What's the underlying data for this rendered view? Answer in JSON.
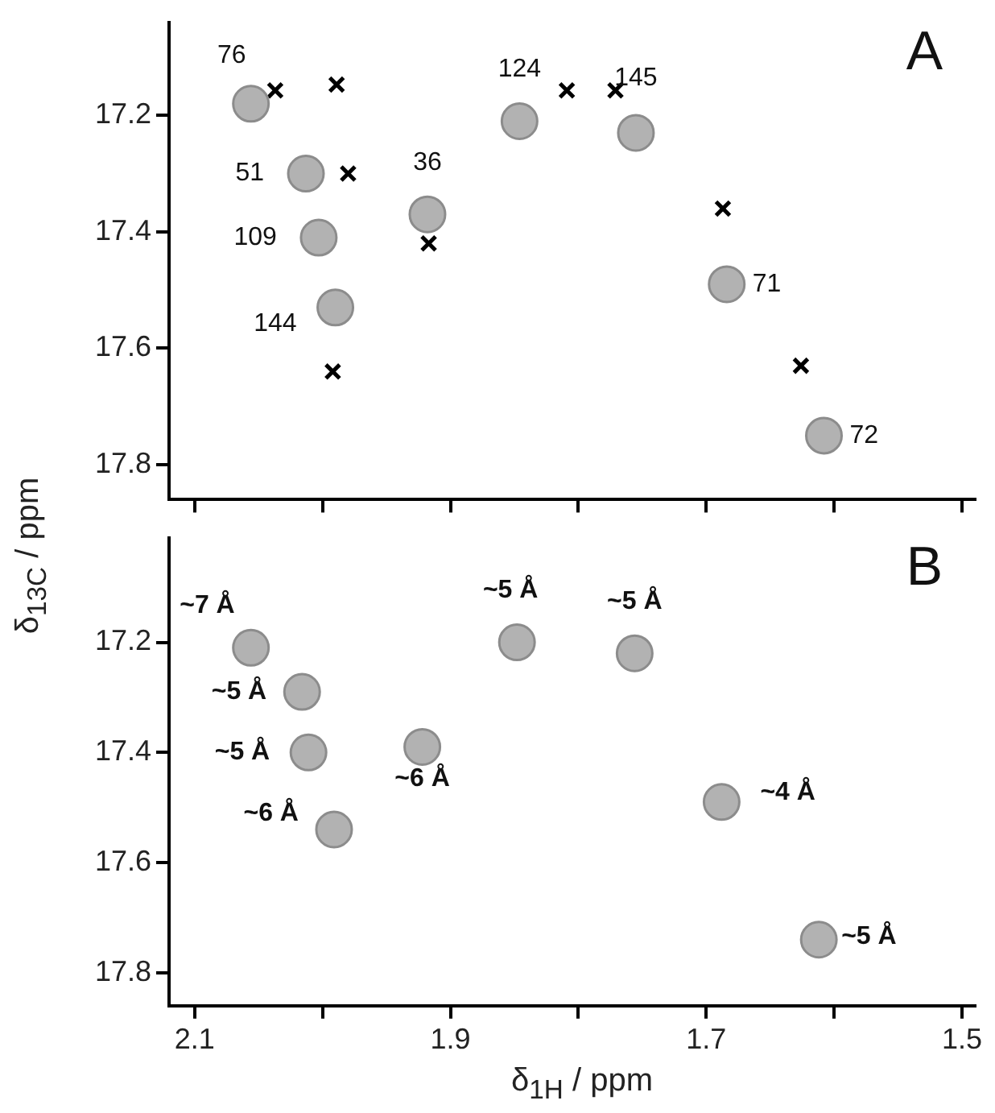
{
  "chart_data": [
    {
      "type": "scatter",
      "annotations": [
        "A",
        {
          "text": "76",
          "x": 2.056,
          "y": 17.18
        },
        {
          "text": "51",
          "x": 2.013,
          "y": 17.3
        },
        {
          "text": "109",
          "x": 2.003,
          "y": 17.41
        },
        {
          "text": "144",
          "x": 1.99,
          "y": 17.53
        },
        {
          "text": "36",
          "x": 1.918,
          "y": 17.37
        },
        {
          "text": "124",
          "x": 1.846,
          "y": 17.21
        },
        {
          "text": "145",
          "x": 1.755,
          "y": 17.23
        },
        {
          "text": "71",
          "x": 1.684,
          "y": 17.49
        },
        {
          "text": "72",
          "x": 1.608,
          "y": 17.75
        }
      ],
      "xlim": [
        2.12,
        1.49
      ],
      "xticks": [
        2.1,
        {
          "value": 2.0,
          "label": null
        },
        1.9,
        {
          "value": 1.8,
          "label": null
        },
        1.7,
        {
          "value": 1.6,
          "label": null
        },
        1.5
      ],
      "ylim": [
        17.86,
        17.04
      ],
      "yticks": [
        17.2,
        17.4,
        17.6,
        17.8
      ],
      "tick_labels": "y",
      "grid": false,
      "legend": false,
      "series": [
        {
          "type": "scatter",
          "marker": "circle",
          "color": "#8c8c8c",
          "x": [
            2.056,
            2.013,
            2.003,
            1.99,
            1.918,
            1.846,
            1.755,
            1.684,
            1.608
          ],
          "values": [
            17.18,
            17.3,
            17.41,
            17.53,
            17.37,
            17.21,
            17.23,
            17.49,
            17.75
          ]
        },
        {
          "type": "scatter",
          "marker": "cross",
          "color": "#000000",
          "x": [
            2.037,
            1.989,
            1.98,
            1.917,
            1.992,
            1.809,
            1.771,
            1.687,
            1.626
          ],
          "values": [
            17.157,
            17.147,
            17.3,
            17.42,
            17.64,
            17.157,
            17.157,
            17.36,
            17.63
          ]
        }
      ]
    },
    {
      "type": "scatter",
      "annotations": [
        "B",
        {
          "text": "~7 Å",
          "x": 2.056,
          "y": 17.21
        },
        {
          "text": "~5 Å",
          "x": 2.016,
          "y": 17.29
        },
        {
          "text": "~5 Å",
          "x": 2.011,
          "y": 17.4
        },
        {
          "text": "~6 Å",
          "x": 1.991,
          "y": 17.54
        },
        {
          "text": "~6 Å",
          "x": 1.922,
          "y": 17.39
        },
        {
          "text": "~5 Å",
          "x": 1.848,
          "y": 17.2
        },
        {
          "text": "~5 Å",
          "x": 1.756,
          "y": 17.22
        },
        {
          "text": "~4 Å",
          "x": 1.688,
          "y": 17.49
        },
        {
          "text": "~5 Å",
          "x": 1.612,
          "y": 17.74
        }
      ],
      "xlabel": "δ$_{1H}$ / ppm",
      "ylabel": "δ$_{13C}$ / ppm",
      "xlim": [
        2.12,
        1.49
      ],
      "ylim": [
        17.86,
        17.01
      ],
      "xticks": [
        2.1,
        {
          "value": 2.0,
          "label": null
        },
        1.9,
        {
          "value": 1.8,
          "label": null
        },
        1.7,
        {
          "value": 1.6,
          "label": null
        },
        1.5
      ],
      "yticks": [
        17.2,
        17.4,
        17.6,
        17.8
      ],
      "grid": false,
      "legend": false,
      "series": [
        {
          "type": "scatter",
          "marker": "circle",
          "color": "#8c8c8c",
          "x": [
            2.056,
            2.016,
            2.011,
            1.991,
            1.922,
            1.848,
            1.756,
            1.688,
            1.612
          ],
          "values": [
            17.21,
            17.29,
            17.4,
            17.54,
            17.39,
            17.2,
            17.22,
            17.49,
            17.74
          ]
        }
      ]
    }
  ]
}
